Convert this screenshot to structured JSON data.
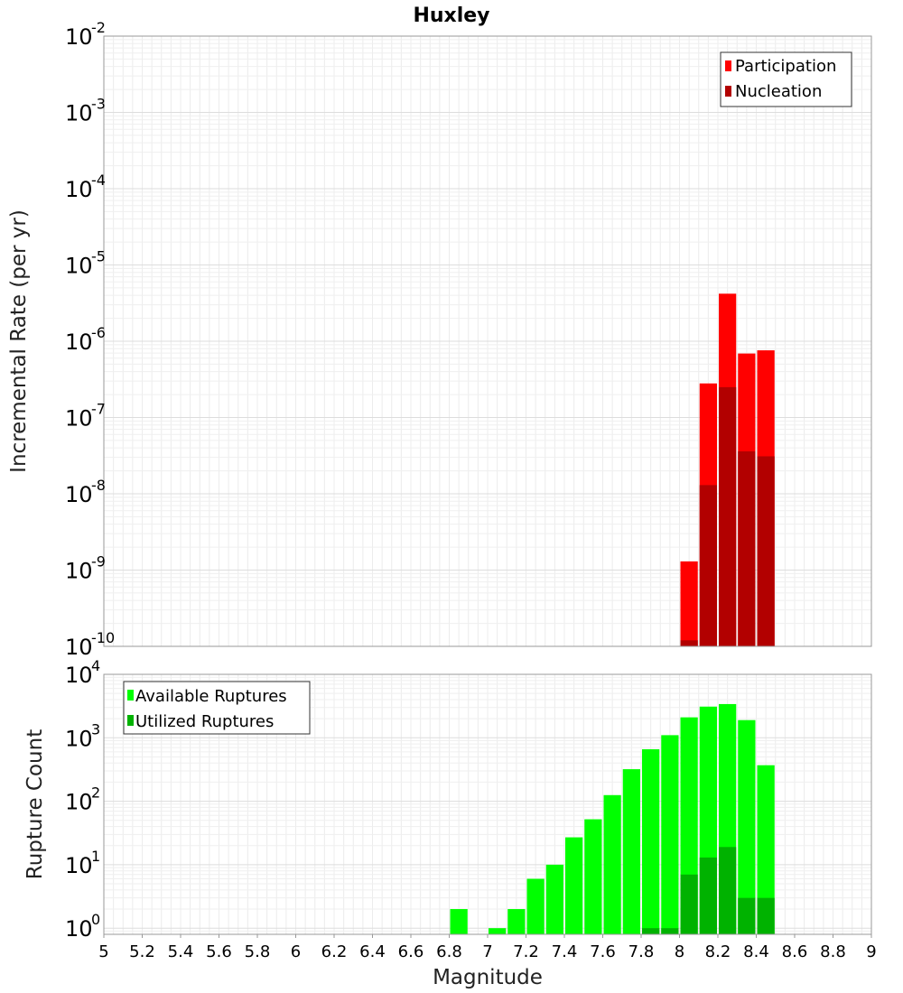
{
  "title": "Huxley",
  "chart_data": [
    {
      "type": "bar",
      "log_y": true,
      "xlabel": "Magnitude",
      "ylabel": "Incremental Rate (per yr)",
      "xlim": [
        5,
        9
      ],
      "ylim": [
        1e-10,
        0.01
      ],
      "ytick_exponents": [
        -10,
        -9,
        -8,
        -7,
        -6,
        -5,
        -4,
        -3,
        -2
      ],
      "bin_width": 0.1,
      "legend": {
        "placement": "top-right",
        "entries": [
          "Participation",
          "Nucleation"
        ]
      },
      "grid": true,
      "series": [
        {
          "name": "Participation",
          "color": "#ff0000",
          "x": [
            8.05,
            8.15,
            8.25,
            8.35,
            8.45
          ],
          "values": [
            1.3e-09,
            2.8e-07,
            4.2e-06,
            6.9e-07,
            7.6e-07
          ]
        },
        {
          "name": "Nucleation",
          "color": "#b20000",
          "x": [
            8.05,
            8.15,
            8.25,
            8.35,
            8.45
          ],
          "values": [
            1.2e-10,
            1.3e-08,
            2.5e-07,
            3.6e-08,
            3.1e-08
          ]
        }
      ]
    },
    {
      "type": "bar",
      "log_y": true,
      "xlabel": "Magnitude",
      "ylabel": "Rupture Count",
      "xlim": [
        5,
        9
      ],
      "ylim": [
        0.8,
        10000
      ],
      "ytick_exponents": [
        0,
        1,
        2,
        3,
        4
      ],
      "xticks": [
        "5",
        "5.2",
        "5.4",
        "5.6",
        "5.8",
        "6",
        "6.2",
        "6.4",
        "6.6",
        "6.8",
        "7",
        "7.2",
        "7.4",
        "7.6",
        "7.8",
        "8",
        "8.2",
        "8.4",
        "8.6",
        "8.8",
        "9"
      ],
      "bin_width": 0.1,
      "legend": {
        "placement": "top-left",
        "entries": [
          "Available Ruptures",
          "Utilized Ruptures"
        ]
      },
      "grid": true,
      "series": [
        {
          "name": "Available Ruptures",
          "color": "#00ff00",
          "x": [
            6.85,
            7.05,
            7.15,
            7.25,
            7.35,
            7.45,
            7.55,
            7.65,
            7.75,
            7.85,
            7.95,
            8.05,
            8.15,
            8.25,
            8.35,
            8.45
          ],
          "values": [
            2,
            1,
            2,
            6,
            10,
            27,
            52,
            125,
            320,
            660,
            1100,
            2100,
            3100,
            3400,
            1900,
            370
          ]
        },
        {
          "name": "Utilized Ruptures",
          "color": "#00b200",
          "x": [
            7.85,
            7.95,
            8.05,
            8.15,
            8.25,
            8.35,
            8.45
          ],
          "values": [
            1,
            1,
            7,
            13,
            19,
            3,
            3
          ]
        }
      ]
    }
  ]
}
